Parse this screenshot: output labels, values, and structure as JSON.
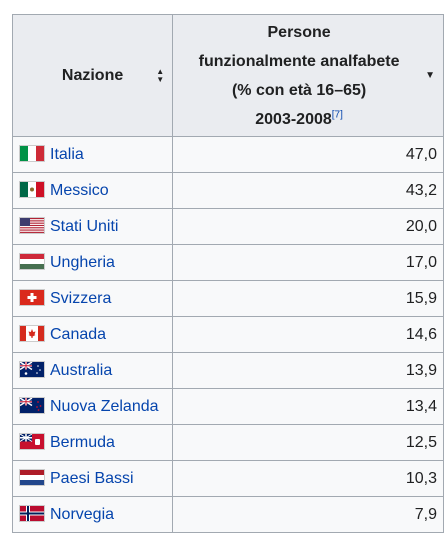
{
  "table": {
    "header": {
      "col1": "Nazione",
      "col2_line1": "Persone",
      "col2_line2": "funzionalmente analfabete",
      "col2_line3": "(% con età 16–65)",
      "col2_line4": "2003-2008",
      "col2_ref": "[7]"
    },
    "rows": [
      {
        "country": "Italia",
        "value": "47,0",
        "flag": "flag-italy-icon"
      },
      {
        "country": "Messico",
        "value": "43,2",
        "flag": "flag-mexico-icon"
      },
      {
        "country": "Stati Uniti",
        "value": "20,0",
        "flag": "flag-usa-icon"
      },
      {
        "country": "Ungheria",
        "value": "17,0",
        "flag": "flag-hungary-icon"
      },
      {
        "country": "Svizzera",
        "value": "15,9",
        "flag": "flag-switzerland-icon"
      },
      {
        "country": "Canada",
        "value": "14,6",
        "flag": "flag-canada-icon"
      },
      {
        "country": "Australia",
        "value": "13,9",
        "flag": "flag-australia-icon"
      },
      {
        "country": "Nuova Zelanda",
        "value": "13,4",
        "flag": "flag-new-zealand-icon"
      },
      {
        "country": "Bermuda",
        "value": "12,5",
        "flag": "flag-bermuda-icon"
      },
      {
        "country": "Paesi Bassi",
        "value": "10,3",
        "flag": "flag-netherlands-icon"
      },
      {
        "country": "Norvegia",
        "value": "7,9",
        "flag": "flag-norway-icon"
      }
    ]
  },
  "colors": {
    "header_bg": "#eaecf0",
    "cell_bg": "#f8f9fa",
    "border": "#a2a9b1",
    "link": "#0645ad"
  }
}
